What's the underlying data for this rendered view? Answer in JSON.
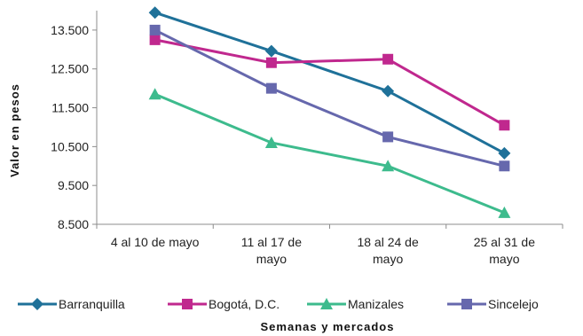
{
  "chart_data": {
    "type": "line",
    "xlabel": "Semanas y mercados",
    "ylabel": "Valor en pesos",
    "categories": [
      [
        "4 al 10 de mayo"
      ],
      [
        "11 al 17 de",
        "mayo"
      ],
      [
        "18 al 24 de",
        "mayo"
      ],
      [
        "25 al 31 de",
        "mayo"
      ]
    ],
    "yticks": [
      8500,
      9500,
      10500,
      11500,
      12500,
      13500
    ],
    "ytick_labels": [
      "8.500",
      "9.500",
      "10.500",
      "11.500",
      "12.500",
      "13.500"
    ],
    "ylim": [
      8500,
      14000
    ],
    "grid": false,
    "legend_position": "bottom",
    "series": [
      {
        "name": "Barranquilla",
        "color": "#1f7199",
        "marker": "diamond",
        "values": [
          13950,
          12960,
          11930,
          10330
        ]
      },
      {
        "name": "Bogotá, D.C.",
        "color": "#c0288e",
        "marker": "square",
        "values": [
          13250,
          12660,
          12750,
          11050
        ]
      },
      {
        "name": "Manizales",
        "color": "#3dbb8d",
        "marker": "triangle",
        "values": [
          11850,
          10600,
          10000,
          8800
        ]
      },
      {
        "name": "Sincelejo",
        "color": "#6668ad",
        "marker": "square",
        "values": [
          13500,
          12000,
          10750,
          10000
        ]
      }
    ]
  }
}
